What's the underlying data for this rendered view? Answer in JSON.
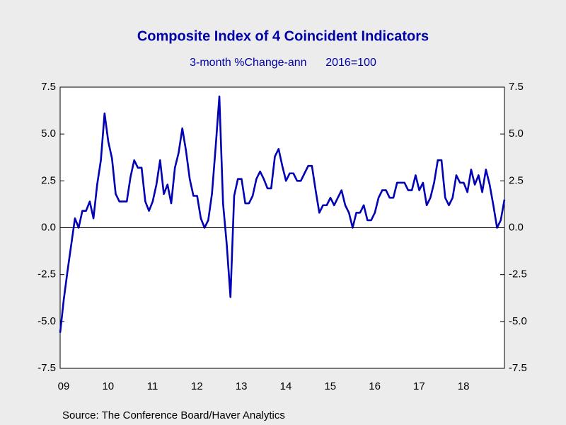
{
  "chart_data": {
    "type": "line",
    "title": "Composite Index of 4 Coincident Indicators",
    "subtitle": "3-month %Change-ann      2016=100",
    "source": "Source:  The Conference Board/Haver Analytics",
    "categories": [
      "09",
      null,
      null,
      null,
      null,
      null,
      null,
      null,
      null,
      null,
      null,
      null,
      "10",
      null,
      null,
      null,
      null,
      null,
      null,
      null,
      null,
      null,
      null,
      null,
      "11",
      null,
      null,
      null,
      null,
      null,
      null,
      null,
      null,
      null,
      null,
      null,
      "12",
      null,
      null,
      null,
      null,
      null,
      null,
      null,
      null,
      null,
      null,
      null,
      "13",
      null,
      null,
      null,
      null,
      null,
      null,
      null,
      null,
      null,
      null,
      null,
      "14",
      null,
      null,
      null,
      null,
      null,
      null,
      null,
      null,
      null,
      null,
      null,
      "15",
      null,
      null,
      null,
      null,
      null,
      null,
      null,
      null,
      null,
      null,
      null,
      "16",
      null,
      null,
      null,
      null,
      null,
      null,
      null,
      null,
      null,
      null,
      null,
      "17",
      null,
      null,
      null,
      null,
      null,
      null,
      null,
      null,
      null,
      null,
      null,
      "18",
      null,
      null,
      null,
      null,
      null,
      null,
      null,
      null,
      null,
      null,
      null,
      null
    ],
    "values": [
      -5.6,
      -3.8,
      -2.3,
      -0.9,
      0.5,
      0.0,
      0.9,
      0.9,
      1.4,
      0.5,
      2.3,
      3.6,
      6.1,
      4.6,
      3.7,
      1.8,
      1.4,
      1.4,
      1.4,
      2.7,
      3.6,
      3.2,
      3.2,
      1.4,
      0.9,
      1.4,
      2.3,
      3.6,
      1.8,
      2.3,
      1.3,
      3.2,
      4.0,
      5.3,
      4.1,
      2.6,
      1.7,
      1.7,
      0.5,
      0.0,
      0.4,
      1.8,
      4.3,
      7.0,
      1.3,
      -0.9,
      -3.7,
      1.7,
      2.6,
      2.6,
      1.3,
      1.3,
      1.7,
      2.6,
      3.0,
      2.6,
      2.1,
      2.1,
      3.8,
      4.2,
      3.3,
      2.5,
      2.9,
      2.9,
      2.5,
      2.5,
      2.9,
      3.3,
      3.3,
      2.0,
      0.8,
      1.2,
      1.2,
      1.6,
      1.2,
      1.6,
      2.0,
      1.2,
      0.8,
      0.0,
      0.8,
      0.8,
      1.2,
      0.4,
      0.4,
      0.8,
      1.6,
      2.0,
      2.0,
      1.6,
      1.6,
      2.4,
      2.4,
      2.4,
      2.0,
      2.0,
      2.8,
      2.0,
      2.4,
      1.2,
      1.6,
      2.4,
      3.6,
      3.6,
      1.6,
      1.2,
      1.6,
      2.8,
      2.4,
      2.4,
      1.9,
      3.1,
      2.3,
      2.8,
      1.9,
      3.1,
      2.3,
      1.2,
      0.0,
      0.4,
      1.5
    ],
    "color": "#0000b4",
    "ylim": [
      -7.5,
      7.5
    ],
    "yticks": [
      -7.5,
      {
        "value": -5,
        "label": "-5.0"
      },
      -2.5,
      {
        "value": 0,
        "label": "0.0"
      },
      2.5,
      {
        "value": 5,
        "label": "5.0"
      },
      7.5
    ],
    "y2lim": [
      -7.5,
      7.5
    ],
    "y2ticks": [
      -7.5,
      {
        "value": -5,
        "label": "-5.0"
      },
      -2.5,
      {
        "value": 0,
        "label": "0.0"
      },
      2.5,
      {
        "value": 5,
        "label": "5.0"
      },
      7.5
    ]
  }
}
